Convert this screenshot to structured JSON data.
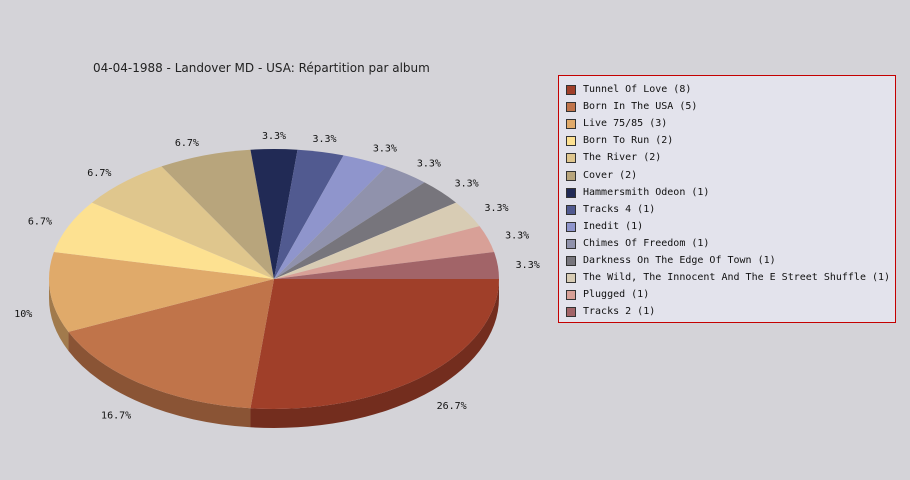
{
  "chart_data": {
    "type": "pie",
    "title": "04-04-1988 - Landover MD - USA:  Répartition par album",
    "legend_position": "right",
    "slices": [
      {
        "label": "Tunnel Of Love",
        "count": 8,
        "percent_label": "26.7%",
        "color": "#a03f29"
      },
      {
        "label": "Born In The USA",
        "count": 5,
        "percent_label": "16.7%",
        "color": "#c0744a"
      },
      {
        "label": "Live 75/85",
        "count": 3,
        "percent_label": "10%",
        "color": "#e0aa6a"
      },
      {
        "label": "Born To Run",
        "count": 2,
        "percent_label": "6.7%",
        "color": "#fde191"
      },
      {
        "label": "The River",
        "count": 2,
        "percent_label": "6.7%",
        "color": "#dfc68d"
      },
      {
        "label": "Cover",
        "count": 2,
        "percent_label": "6.7%",
        "color": "#b8a57c"
      },
      {
        "label": "Hammersmith Odeon ",
        "count": 1,
        "percent_label": "3.3%",
        "color": "#212a55"
      },
      {
        "label": "Tracks 4",
        "count": 1,
        "percent_label": "3.3%",
        "color": "#515a90"
      },
      {
        "label": "Inedit",
        "count": 1,
        "percent_label": "3.3%",
        "color": "#8f95cc"
      },
      {
        "label": "Chimes Of Freedom",
        "count": 1,
        "percent_label": "3.3%",
        "color": "#9092ac"
      },
      {
        "label": "Darkness On The Edge Of Town",
        "count": 1,
        "percent_label": "3.3%",
        "color": "#77757c"
      },
      {
        "label": "The Wild, The Innocent And The E Street Shuffle",
        "count": 1,
        "percent_label": "3.3%",
        "color": "#d8ccb4"
      },
      {
        "label": "Plugged",
        "count": 1,
        "percent_label": "3.3%",
        "color": "#d8a097"
      },
      {
        "label": "Tracks 2",
        "count": 1,
        "percent_label": "3.3%",
        "color": "#a26468"
      }
    ]
  }
}
